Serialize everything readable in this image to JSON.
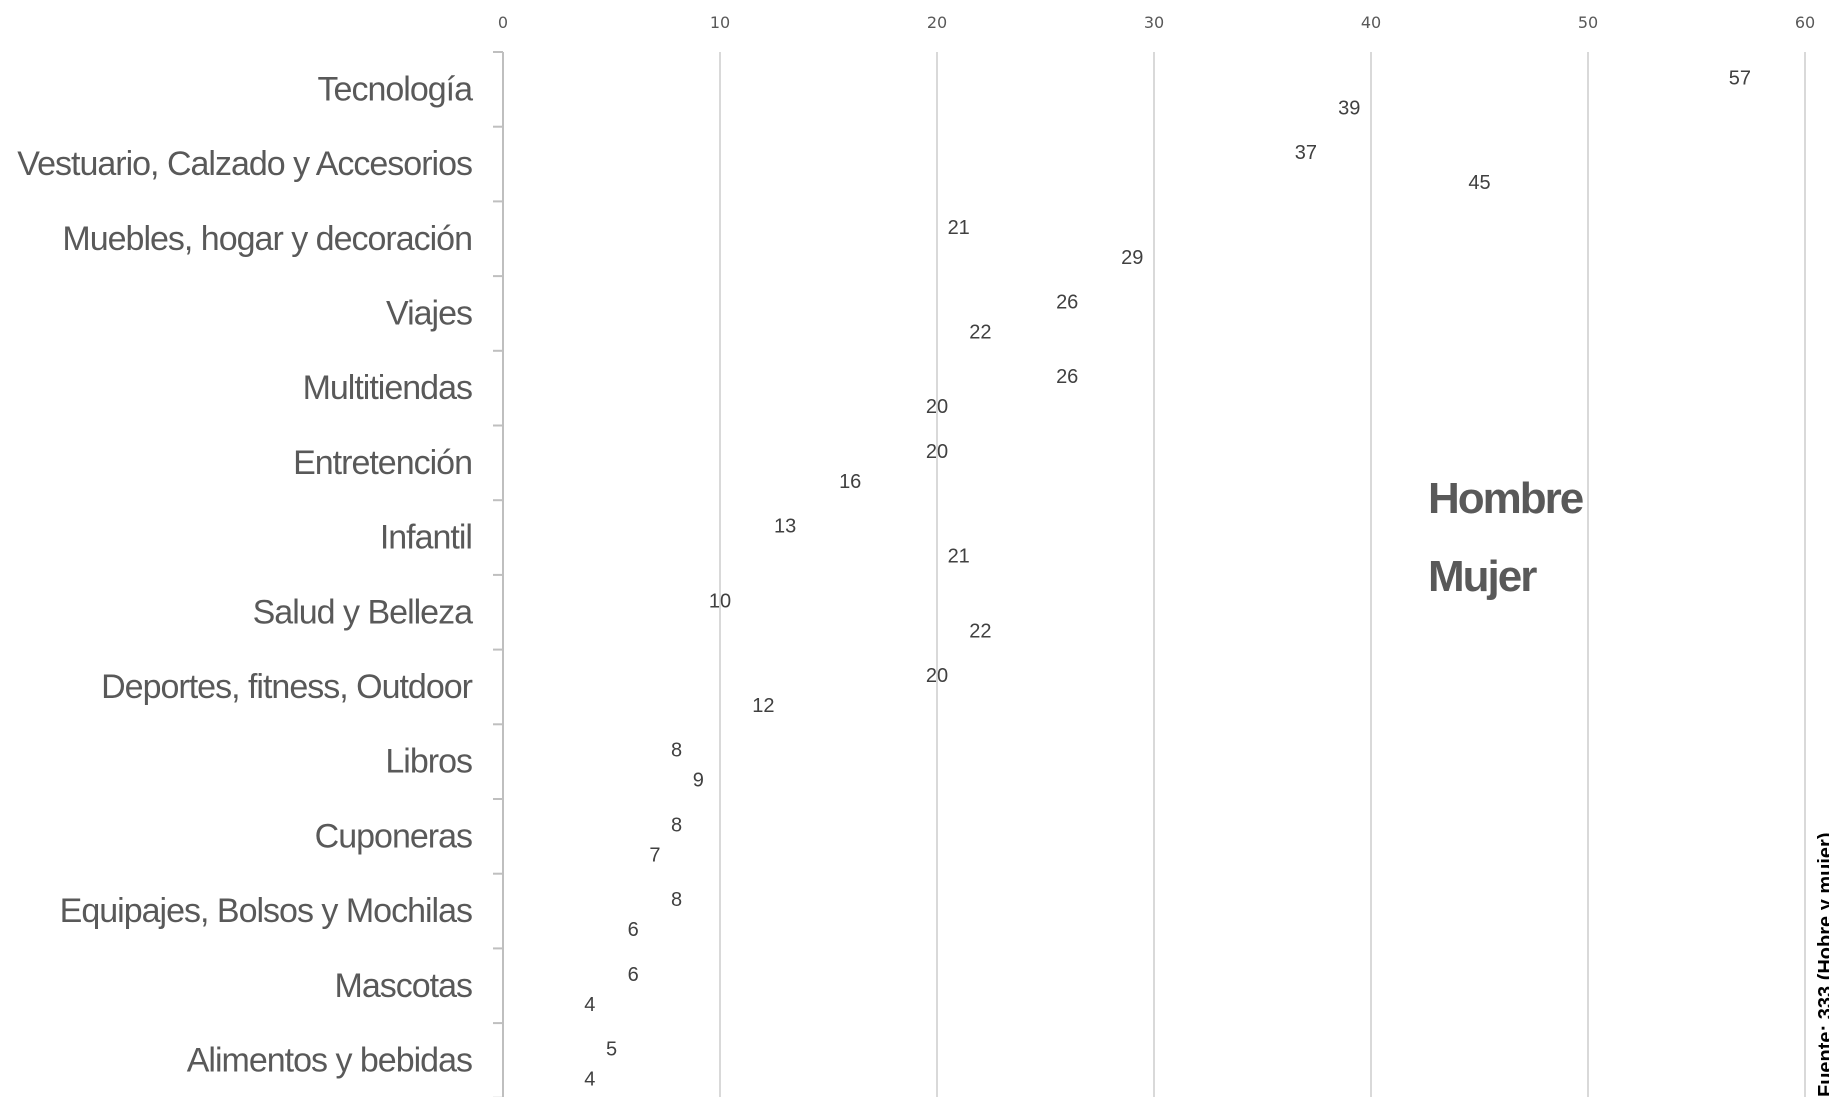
{
  "chart_data": {
    "type": "scatter",
    "title": "",
    "xlabel": "",
    "ylabel": "",
    "xlim": [
      0,
      60
    ],
    "x_ticks": [
      0,
      10,
      20,
      30,
      40,
      50,
      60
    ],
    "x_tick_labels": [
      "0",
      "10",
      "20",
      "30",
      "40",
      "50",
      "60"
    ],
    "grid": true,
    "categories": [
      "Tecnología",
      "Vestuario, Calzado y Accesorios",
      "Muebles, hogar y decoración",
      "Viajes",
      "Multitiendas",
      "Entretención",
      "Infantil",
      "Salud y Belleza",
      "Deportes, fitness, Outdoor",
      "Libros",
      "Cuponeras",
      "Equipajes, Bolsos y Mochilas",
      "Mascotas",
      "Alimentos y bebidas"
    ],
    "series": [
      {
        "name": "Hombre",
        "values": [
          57,
          37,
          21,
          26,
          26,
          20,
          13,
          10,
          20,
          8,
          8,
          8,
          6,
          5
        ]
      },
      {
        "name": "Mujer",
        "values": [
          39,
          45,
          29,
          22,
          20,
          16,
          21,
          22,
          12,
          9,
          7,
          6,
          4,
          4
        ]
      }
    ],
    "legend": [
      "Hombre",
      "Mujer"
    ],
    "legend_position": "right"
  },
  "side_text": "Fuente: 333 (Hobre y mujer)"
}
